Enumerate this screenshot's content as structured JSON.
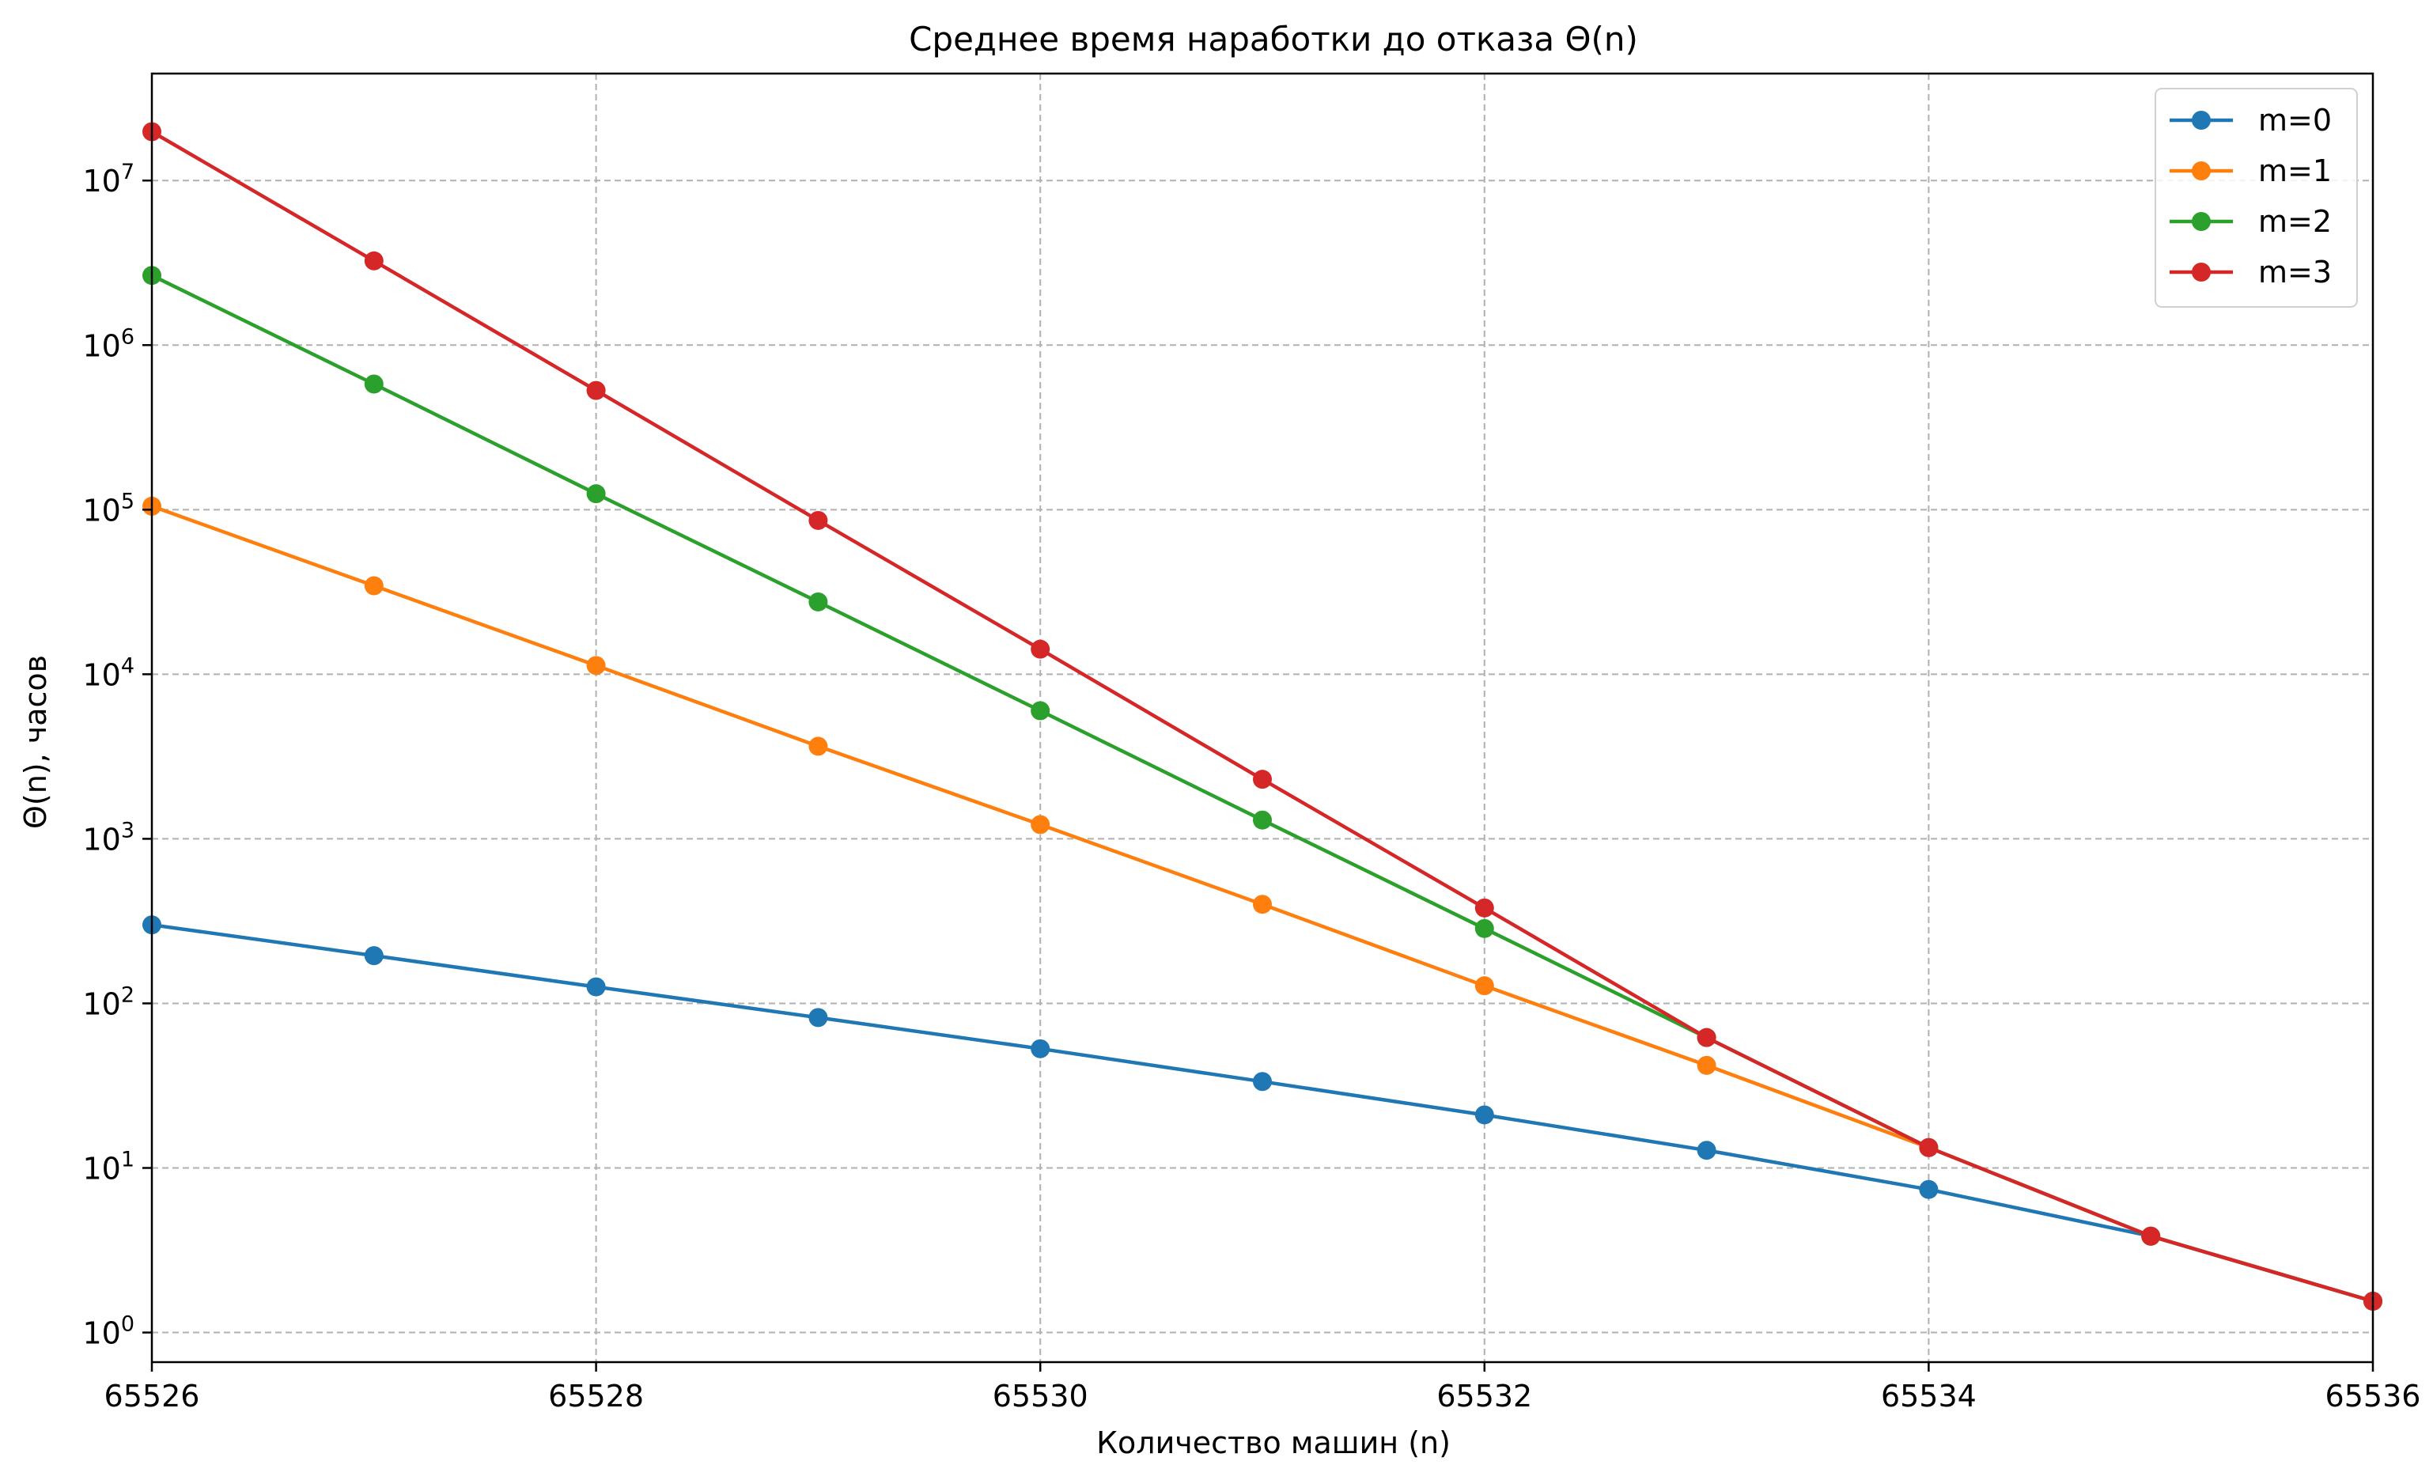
{
  "chart_data": {
    "type": "line",
    "title": "Среднее время наработки до отказа Θ(n)",
    "xlabel": "Количество машин (n)",
    "ylabel": "Θ(n), часов",
    "xlim": [
      65526,
      65536
    ],
    "ylim_log10": [
      -0.18,
      7.65
    ],
    "yscale": "log",
    "grid": true,
    "legend_position": "top-right",
    "x_ticks": [
      65526,
      65528,
      65530,
      65532,
      65534,
      65536
    ],
    "x_tick_labels": [
      "65526",
      "65528",
      "65530",
      "65532",
      "65534",
      "65536"
    ],
    "y_ticks": [
      {
        "base": "10",
        "exp": "0",
        "value": 1
      },
      {
        "base": "10",
        "exp": "1",
        "value": 10
      },
      {
        "base": "10",
        "exp": "2",
        "value": 100
      },
      {
        "base": "10",
        "exp": "3",
        "value": 1000
      },
      {
        "base": "10",
        "exp": "4",
        "value": 10000
      },
      {
        "base": "10",
        "exp": "5",
        "value": 100000
      },
      {
        "base": "10",
        "exp": "6",
        "value": 1000000
      },
      {
        "base": "10",
        "exp": "7",
        "value": 10000000
      }
    ],
    "x": [
      65526,
      65527,
      65528,
      65529,
      65530,
      65531,
      65532,
      65533,
      65534,
      65535,
      65536
    ],
    "series": [
      {
        "name": "m=0",
        "color": "#1f77b4",
        "values": [
          300,
          195,
          126,
          82,
          53,
          33.5,
          21,
          12.8,
          7.4,
          3.85,
          1.55
        ]
      },
      {
        "name": "m=1",
        "color": "#ff7f0e",
        "values": [
          105000,
          34500,
          11300,
          3650,
          1220,
          400,
          128,
          42,
          13.3,
          3.85,
          1.55
        ]
      },
      {
        "name": "m=2",
        "color": "#2ca02c",
        "values": [
          2650000,
          580000,
          125000,
          27500,
          6000,
          1300,
          285,
          62,
          13.3,
          3.85,
          1.55
        ]
      },
      {
        "name": "m=3",
        "color": "#d62728",
        "values": [
          19800000,
          3250000,
          530000,
          86000,
          14200,
          2300,
          380,
          62,
          13.3,
          3.85,
          1.55
        ]
      }
    ]
  }
}
